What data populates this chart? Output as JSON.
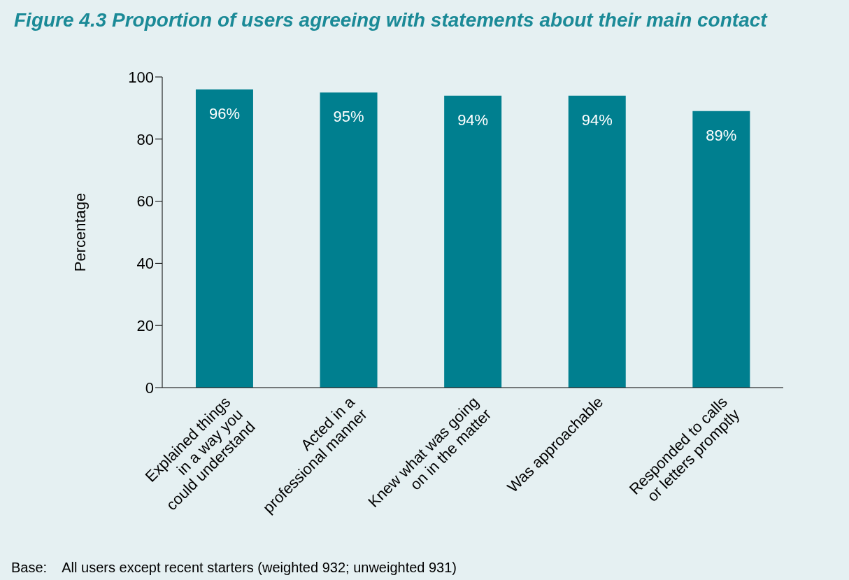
{
  "chart_data": {
    "type": "bar",
    "title": "Figure 4.3   Proportion of users agreeing with statements about their main contact",
    "ylabel": "Percentage",
    "categories": [
      "Explained things\nin a way you\ncould understand",
      "Acted in a\nprofessional manner",
      "Knew what was going\non in the matter",
      "Was approachable",
      "Responded to calls\nor letters promptly"
    ],
    "values": [
      96,
      95,
      94,
      94,
      89
    ],
    "value_labels": [
      "96%",
      "95%",
      "94%",
      "94%",
      "89%"
    ],
    "color": "#007f8f",
    "ylim": [
      0,
      100
    ],
    "yticks": [
      0,
      20,
      40,
      60,
      80,
      100
    ],
    "grid": false,
    "legend": false,
    "annotations": [
      "Base:    All users except recent starters (weighted 932; unweighted 931)"
    ]
  }
}
